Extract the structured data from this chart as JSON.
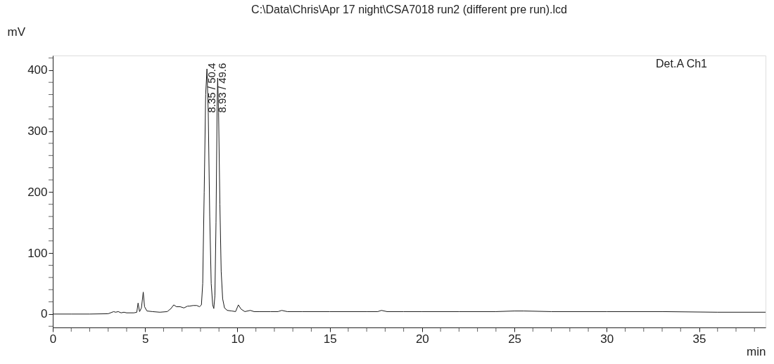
{
  "chart_data": {
    "type": "line",
    "title": "C:\\Data\\Chris\\Apr 17 night\\CSA7018 run2 (different pre run).lcd",
    "xlabel": "min",
    "ylabel": "mV",
    "xlim": [
      0,
      38.6
    ],
    "ylim": [
      -22,
      424
    ],
    "xticks": [
      0,
      {
        "value": 1,
        "label": null
      },
      {
        "value": 2,
        "label": null
      },
      {
        "value": 3,
        "label": null
      },
      {
        "value": 4,
        "label": null
      },
      5,
      {
        "value": 6,
        "label": null
      },
      {
        "value": 7,
        "label": null
      },
      {
        "value": 8,
        "label": null
      },
      {
        "value": 9,
        "label": null
      },
      10,
      {
        "value": 11,
        "label": null
      },
      {
        "value": 12,
        "label": null
      },
      {
        "value": 13,
        "label": null
      },
      {
        "value": 14,
        "label": null
      },
      15,
      {
        "value": 16,
        "label": null
      },
      {
        "value": 17,
        "label": null
      },
      {
        "value": 18,
        "label": null
      },
      {
        "value": 19,
        "label": null
      },
      20,
      {
        "value": 21,
        "label": null
      },
      {
        "value": 22,
        "label": null
      },
      {
        "value": 23,
        "label": null
      },
      {
        "value": 24,
        "label": null
      },
      25,
      {
        "value": 26,
        "label": null
      },
      {
        "value": 27,
        "label": null
      },
      {
        "value": 28,
        "label": null
      },
      {
        "value": 29,
        "label": null
      },
      30,
      {
        "value": 31,
        "label": null
      },
      {
        "value": 32,
        "label": null
      },
      {
        "value": 33,
        "label": null
      },
      {
        "value": 34,
        "label": null
      },
      35,
      {
        "value": 36,
        "label": null
      },
      {
        "value": 37,
        "label": null
      },
      {
        "value": 38,
        "label": null
      }
    ],
    "yticks": [
      {
        "value": -20,
        "label": null
      },
      0,
      {
        "value": 20,
        "label": null
      },
      {
        "value": 40,
        "label": null
      },
      {
        "value": 60,
        "label": null
      },
      {
        "value": 80,
        "label": null
      },
      100,
      {
        "value": 120,
        "label": null
      },
      {
        "value": 140,
        "label": null
      },
      {
        "value": 160,
        "label": null
      },
      {
        "value": 180,
        "label": null
      },
      200,
      {
        "value": 220,
        "label": null
      },
      {
        "value": 240,
        "label": null
      },
      {
        "value": 260,
        "label": null
      },
      {
        "value": 280,
        "label": null
      },
      300,
      {
        "value": 320,
        "label": null
      },
      {
        "value": 340,
        "label": null
      },
      {
        "value": 360,
        "label": null
      },
      {
        "value": 380,
        "label": null
      },
      400,
      {
        "value": 420,
        "label": null
      }
    ],
    "grid": false,
    "marker": "none",
    "line_style": "solid",
    "series": [
      {
        "color": "#1a1a1a",
        "x": [
          0,
          1,
          2,
          3,
          3.3,
          3.4,
          3.55,
          3.7,
          3.85,
          4.0,
          4.4,
          4.55,
          4.62,
          4.7,
          4.8,
          4.9,
          4.97,
          5.1,
          5.4,
          5.8,
          6.2,
          6.4,
          6.55,
          6.7,
          6.9,
          7.1,
          7.3,
          7.4,
          7.6,
          7.8,
          7.95,
          8.05,
          8.12,
          8.2,
          8.28,
          8.35,
          8.42,
          8.5,
          8.58,
          8.66,
          8.72,
          8.78,
          8.84,
          8.9,
          8.93,
          8.98,
          9.05,
          9.12,
          9.2,
          9.3,
          9.45,
          9.7,
          9.9,
          10.05,
          10.2,
          10.4,
          10.7,
          10.9,
          11.2,
          11.8,
          12.2,
          12.4,
          12.7,
          13.5,
          15,
          17,
          17.6,
          17.8,
          18.1,
          19,
          20,
          22,
          24,
          25,
          25.5,
          27,
          30,
          33,
          36,
          38.6
        ],
        "values": [
          0,
          0,
          0,
          0.5,
          4,
          3,
          4,
          2,
          3,
          2,
          2,
          3,
          18,
          4,
          10,
          36,
          12,
          5,
          4,
          3,
          4,
          9,
          15,
          12,
          12,
          10,
          13,
          13,
          14,
          14,
          12,
          15,
          50,
          200,
          360,
          402,
          330,
          160,
          50,
          15,
          9,
          30,
          150,
          340,
          387,
          330,
          180,
          70,
          25,
          10,
          6,
          5,
          4,
          15,
          8,
          4,
          6,
          4,
          4,
          4,
          4,
          6,
          4,
          4,
          4,
          4,
          4,
          6,
          4,
          4,
          4,
          4,
          4,
          5,
          5,
          4,
          4,
          4,
          3,
          3
        ]
      }
    ],
    "annotations": [
      {
        "text": "8.35 / 50.4",
        "x": 8.35,
        "y": 330
      },
      {
        "text": "8.93 / 49.6",
        "x": 8.93,
        "y": 330
      },
      "Det.A Ch1"
    ]
  }
}
